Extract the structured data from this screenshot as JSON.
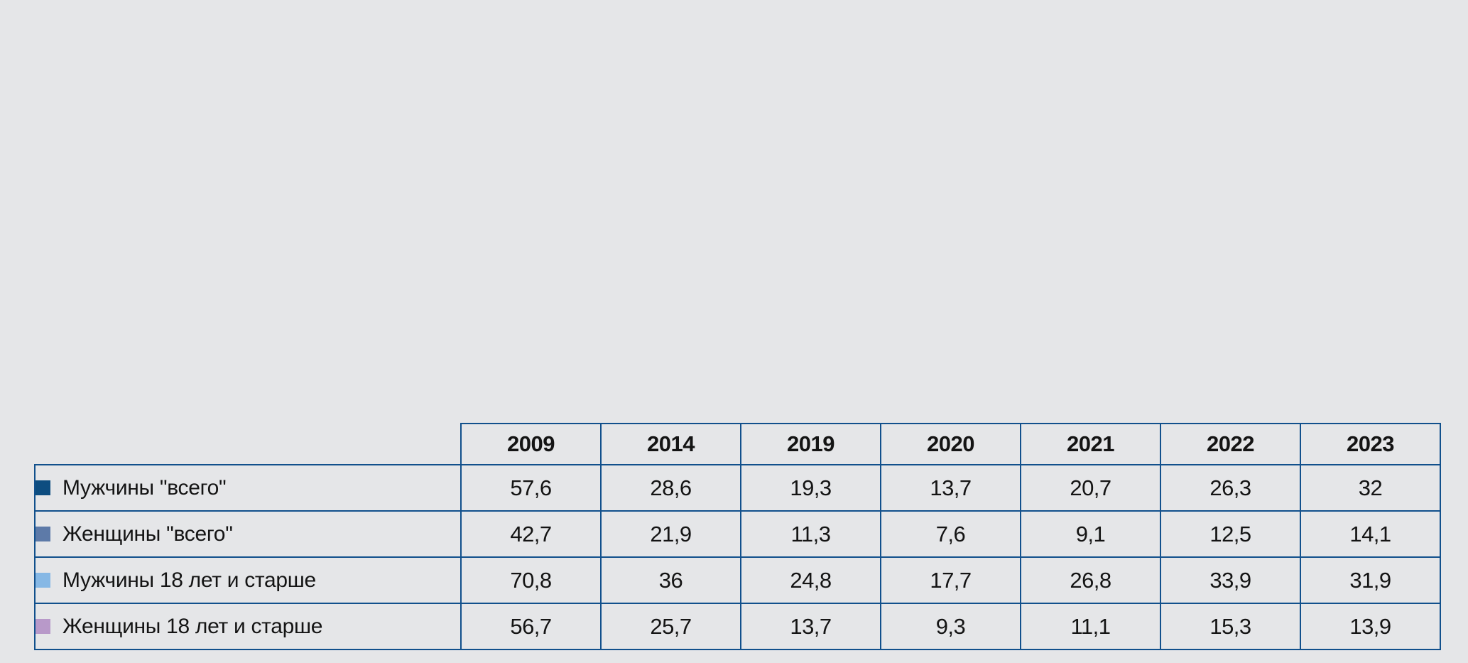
{
  "background_color": "#e5e6e8",
  "border_color": "#11508c",
  "chart_data": {
    "type": "bar",
    "orientation": "horizontal",
    "stacked": true,
    "title": "",
    "xlabel": "",
    "ylabel": "",
    "grid": false,
    "legend_position": "table-left-column",
    "xlim": [
      0,
      245
    ],
    "years": [
      "2009",
      "2014",
      "2019",
      "2020",
      "2021",
      "2022",
      "2023"
    ],
    "bar_order_top_to_bottom": [
      "2023",
      "2022",
      "2021",
      "2020",
      "2019",
      "2014",
      "2009"
    ],
    "series": [
      {
        "name": "Мужчины \"всего\"",
        "color": "#0d4d80",
        "values_by_year": [
          57.6,
          28.6,
          19.3,
          13.7,
          20.7,
          26.3,
          32
        ]
      },
      {
        "name": "Женщины \"всего\"",
        "color": "#5d7aa8",
        "values_by_year": [
          42.7,
          21.9,
          11.3,
          7.6,
          9.1,
          12.5,
          14.1
        ]
      },
      {
        "name": "Мужчины 18 лет и старше",
        "color": "#86b8e5",
        "values_by_year": [
          70.8,
          36,
          24.8,
          17.7,
          26.8,
          33.9,
          31.9
        ]
      },
      {
        "name": "Женщины 18 лет и старше",
        "color": "#b899c9",
        "values_by_year": [
          56.7,
          25.7,
          13.7,
          9.3,
          11.1,
          15.3,
          13.9
        ]
      }
    ]
  },
  "table": {
    "column_headers": [
      "2009",
      "2014",
      "2019",
      "2020",
      "2021",
      "2022",
      "2023"
    ],
    "rows": [
      {
        "label": "Мужчины \"всего\"",
        "swatch_color": "#0d4d80",
        "cells": [
          "57,6",
          "28,6",
          "19,3",
          "13,7",
          "20,7",
          "26,3",
          "32"
        ]
      },
      {
        "label": "Женщины \"всего\"",
        "swatch_color": "#5d7aa8",
        "cells": [
          "42,7",
          "21,9",
          "11,3",
          "7,6",
          "9,1",
          "12,5",
          "14,1"
        ]
      },
      {
        "label": "Мужчины 18 лет и старше",
        "swatch_color": "#86b8e5",
        "cells": [
          "70,8",
          "36",
          "24,8",
          "17,7",
          "26,8",
          "33,9",
          "31,9"
        ]
      },
      {
        "label": "Женщины 18 лет и старше",
        "swatch_color": "#b899c9",
        "cells": [
          "56,7",
          "25,7",
          "13,7",
          "9,3",
          "11,1",
          "15,3",
          "13,9"
        ]
      }
    ]
  }
}
